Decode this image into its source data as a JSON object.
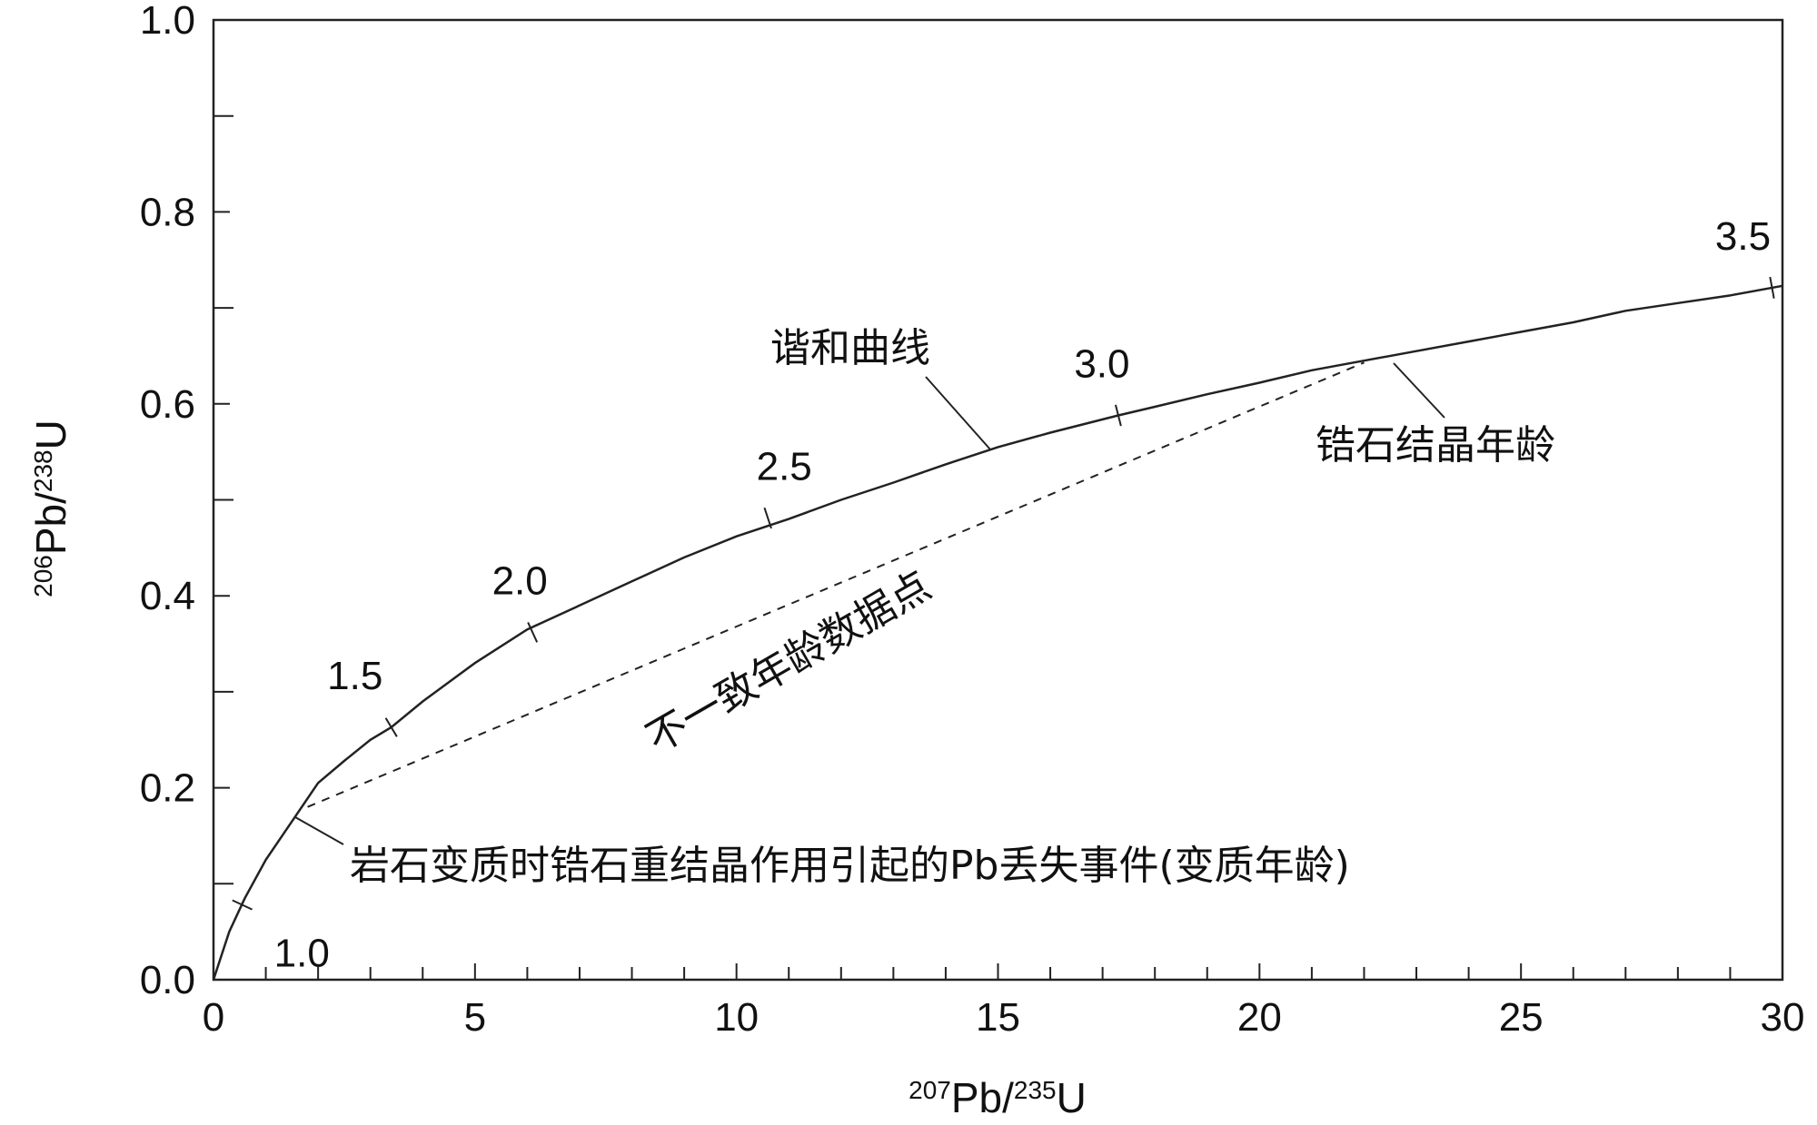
{
  "chart_data": {
    "type": "line",
    "xlabel": "207Pb/235U",
    "ylabel": "206Pb/238U",
    "xlabel_parts": {
      "sup1": "207",
      "base1": "Pb/",
      "sup2": "235",
      "base2": "U"
    },
    "ylabel_parts": {
      "sup1": "206",
      "base1": "Pb/",
      "sup2": "238",
      "base2": "U"
    },
    "xlim": [
      0,
      30
    ],
    "ylim": [
      0,
      1.0
    ],
    "x_ticks": [
      0,
      5,
      10,
      15,
      20,
      25,
      30
    ],
    "x_tick_labels": [
      "0",
      "5",
      "10",
      "15",
      "20",
      "25",
      "30"
    ],
    "y_ticks": [
      0.0,
      0.2,
      0.4,
      0.6,
      0.8,
      1.0
    ],
    "y_tick_labels": [
      "0.0",
      "0.2",
      "0.4",
      "0.6",
      "0.8",
      "1.0"
    ],
    "grid": false,
    "series": [
      {
        "name": "谐和曲线",
        "style": "solid",
        "x": [
          0.0,
          0.3,
          0.6,
          1.0,
          1.5,
          2.0,
          2.5,
          3.0,
          3.4,
          4.0,
          5.0,
          6.0,
          7.0,
          8.0,
          9.0,
          10.0,
          11.0,
          12.0,
          13.0,
          14.0,
          15.0,
          16.0,
          17.3,
          18.0,
          19.0,
          20.0,
          21.0,
          22.0,
          23.0,
          24.0,
          25.0,
          26.0,
          27.0,
          28.0,
          29.0,
          30.0
        ],
        "y": [
          0.0,
          0.05,
          0.085,
          0.125,
          0.165,
          0.205,
          0.228,
          0.25,
          0.263,
          0.29,
          0.33,
          0.365,
          0.39,
          0.415,
          0.44,
          0.462,
          0.48,
          0.5,
          0.518,
          0.537,
          0.555,
          0.57,
          0.588,
          0.597,
          0.61,
          0.622,
          0.635,
          0.645,
          0.655,
          0.665,
          0.675,
          0.685,
          0.697,
          0.705,
          0.713,
          0.723
        ]
      },
      {
        "name": "不一致年龄数据点",
        "style": "dashed",
        "x": [
          1.8,
          22.0
        ],
        "y": [
          0.18,
          0.643
        ]
      }
    ],
    "age_marks": [
      {
        "label": "1.0",
        "x": 0.55,
        "y": 0.078
      },
      {
        "label": "1.5",
        "x": 3.4,
        "y": 0.263
      },
      {
        "label": "2.0",
        "x": 6.1,
        "y": 0.362
      },
      {
        "label": "2.5",
        "x": 10.6,
        "y": 0.481
      },
      {
        "label": "3.0",
        "x": 17.3,
        "y": 0.588
      },
      {
        "label": "3.5",
        "x": 29.8,
        "y": 0.721
      }
    ],
    "annotations": [
      {
        "text": "谐和曲线"
      },
      {
        "text": "锆石结晶年龄"
      },
      {
        "text": "不一致年龄数据点"
      },
      {
        "text": "岩石变质时锆石重结晶作用引起的Pb丢失事件(变质年龄)"
      }
    ]
  }
}
